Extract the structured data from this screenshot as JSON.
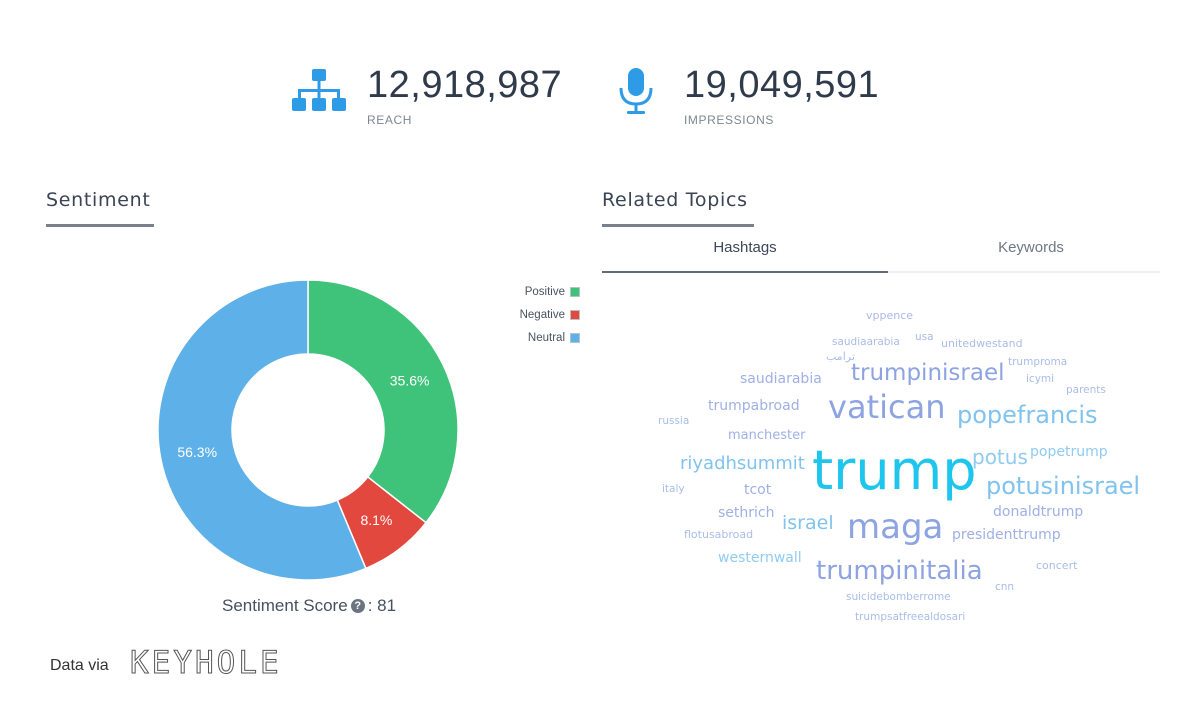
{
  "metrics": {
    "reach": {
      "value": "12,918,987",
      "label": "REACH",
      "icon": "sitemap-icon"
    },
    "impressions": {
      "value": "19,049,591",
      "label": "IMPRESSIONS",
      "icon": "microphone-icon"
    }
  },
  "sentiment": {
    "title": "Sentiment",
    "legend": [
      {
        "label": "Positive",
        "color": "#3fc27a"
      },
      {
        "label": "Negative",
        "color": "#e2483d"
      },
      {
        "label": "Neutral",
        "color": "#5eb0e8"
      }
    ],
    "score_label": "Sentiment Score",
    "score_suffix": ": 81",
    "chart_data": {
      "type": "pie",
      "title": "Sentiment",
      "categories": [
        "Positive",
        "Negative",
        "Neutral"
      ],
      "values": [
        35.6,
        8.1,
        56.3
      ],
      "labels": [
        "35.6%",
        "8.1%",
        "56.3%"
      ],
      "colors": [
        "#3fc27a",
        "#e2483d",
        "#5eb0e8"
      ],
      "donut": true,
      "legend": "top-right"
    }
  },
  "related": {
    "title": "Related Topics",
    "tabs": [
      {
        "label": "Hashtags",
        "active": true
      },
      {
        "label": "Keywords",
        "active": false
      }
    ],
    "words": {
      "vppence": "vppence",
      "saudiaarabia": "saudiaarabia",
      "usa": "usa",
      "unitedwestand": "unitedwestand",
      "tarab": "ترامب",
      "trumproma": "trumproma",
      "trumpinisrael": "trumpinisrael",
      "icymi": "icymi",
      "saudiarabia": "saudiarabia",
      "parents": "parents",
      "trumpabroad": "trumpabroad",
      "vatican": "vatican",
      "popefrancis": "popefrancis",
      "russia": "russia",
      "manchester": "manchester",
      "popetrump": "popetrump",
      "riyadhsummit": "riyadhsummit",
      "trump": "trump",
      "potus": "potus",
      "italy": "italy",
      "tcot": "tcot",
      "potusinisrael": "potusinisrael",
      "donaldtrump": "donaldtrump",
      "sethrich": "sethrich",
      "israel": "israel",
      "maga": "maga",
      "flotusabroad": "flotusabroad",
      "presidenttrump": "presidenttrump",
      "westernwall": "westernwall",
      "concert": "concert",
      "trumpinitalia": "trumpinitalia",
      "cnn": "cnn",
      "suicidebomberrome": "suicidebomberrome",
      "trumpsatfreealdosari": "trumpsatfreealdosari"
    }
  },
  "footer": {
    "text": "Data via",
    "logo": "KEYHOLE"
  },
  "colors": {
    "accent": "#4a90d9",
    "icon_blue": "#2e9be6"
  }
}
